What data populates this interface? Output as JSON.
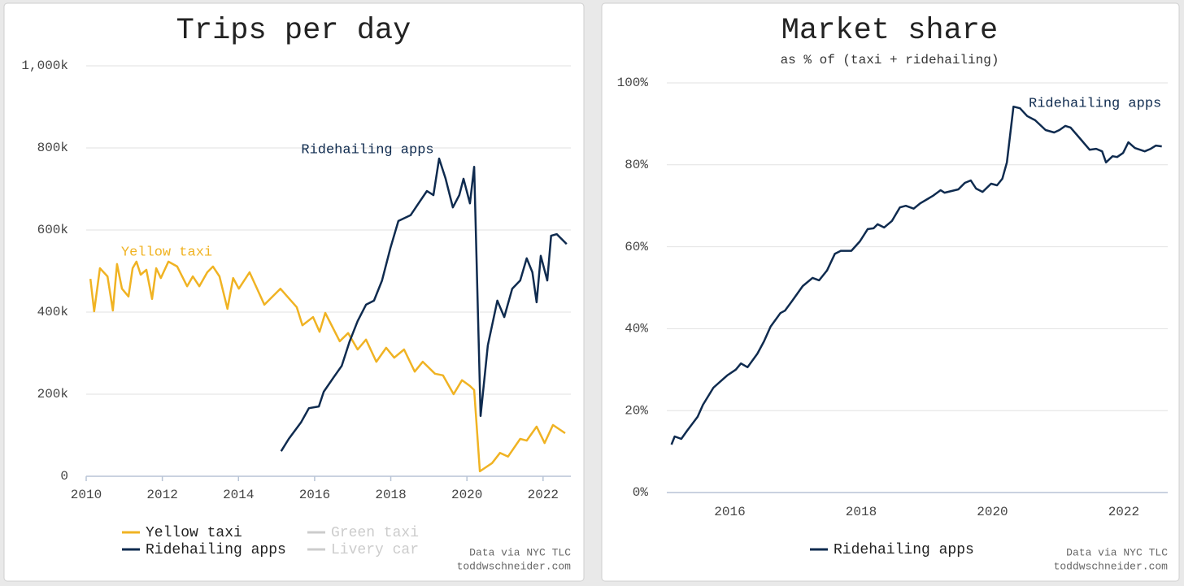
{
  "chart_data": [
    {
      "type": "line",
      "title": "Trips per day",
      "xlim": [
        2010,
        2022.73
      ],
      "xticks": [
        2010,
        2012,
        2014,
        2016,
        2018,
        2020,
        2022
      ],
      "ylim": [
        0,
        1000000
      ],
      "yticks": [
        0,
        {
          "value": 200000,
          "label": "200k"
        },
        {
          "value": 400000,
          "label": "400k"
        },
        {
          "value": 600000,
          "label": "600k"
        },
        {
          "value": 800000,
          "label": "800k"
        },
        {
          "value": 1000000,
          "label": "1,000k"
        }
      ],
      "grid": true,
      "series": [
        {
          "name": "Yellow taxi",
          "color": "#f0b323",
          "visible": true,
          "x": [
            2010.11,
            2010.21,
            2010.36,
            2010.56,
            2010.7,
            2010.81,
            2010.94,
            2011.11,
            2011.22,
            2011.32,
            2011.43,
            2011.58,
            2011.73,
            2011.84,
            2011.96,
            2012.16,
            2012.39,
            2012.65,
            2012.8,
            2012.97,
            2013.18,
            2013.33,
            2013.5,
            2013.71,
            2013.86,
            2014.01,
            2014.29,
            2014.68,
            2015.1,
            2015.53,
            2015.68,
            2015.96,
            2016.13,
            2016.28,
            2016.66,
            2016.88,
            2017.13,
            2017.35,
            2017.62,
            2017.88,
            2018.09,
            2018.35,
            2018.63,
            2018.84,
            2019.16,
            2019.37,
            2019.65,
            2019.87,
            2020.08,
            2020.19,
            2020.34,
            2020.66,
            2020.87,
            2021.08,
            2021.4,
            2021.57,
            2021.83,
            2022.04,
            2022.26,
            2022.58
          ],
          "values": [
            481000,
            402000,
            507000,
            487000,
            404000,
            517000,
            457000,
            438000,
            507000,
            523000,
            491000,
            503000,
            432000,
            507000,
            483000,
            523000,
            511000,
            463000,
            487000,
            463000,
            497000,
            511000,
            487000,
            408000,
            483000,
            457000,
            497000,
            418000,
            457000,
            412000,
            368000,
            388000,
            352000,
            398000,
            329000,
            349000,
            309000,
            333000,
            279000,
            313000,
            289000,
            309000,
            255000,
            279000,
            250000,
            246000,
            200000,
            234000,
            220000,
            210000,
            12000,
            32000,
            57000,
            48000,
            91000,
            87000,
            121000,
            81000,
            125000,
            105000
          ]
        },
        {
          "name": "Ridehailing apps",
          "color": "#0f2b4f",
          "visible": true,
          "x": [
            2015.12,
            2015.32,
            2015.64,
            2015.85,
            2016.11,
            2016.24,
            2016.49,
            2016.71,
            2016.92,
            2017.13,
            2017.35,
            2017.56,
            2017.77,
            2017.99,
            2018.2,
            2018.52,
            2018.73,
            2018.95,
            2019.12,
            2019.27,
            2019.44,
            2019.63,
            2019.8,
            2019.91,
            2020.08,
            2020.19,
            2020.36,
            2020.55,
            2020.8,
            2020.98,
            2021.19,
            2021.4,
            2021.57,
            2021.72,
            2021.83,
            2021.94,
            2022.11,
            2022.21,
            2022.36,
            2022.51,
            2022.62
          ],
          "values": [
            61000,
            91000,
            131000,
            166000,
            170000,
            206000,
            240000,
            269000,
            329000,
            378000,
            418000,
            428000,
            477000,
            556000,
            622000,
            636000,
            665000,
            695000,
            685000,
            774000,
            725000,
            655000,
            685000,
            725000,
            665000,
            754000,
            147000,
            319000,
            428000,
            388000,
            457000,
            477000,
            531000,
            497000,
            424000,
            537000,
            477000,
            586000,
            590000,
            576000,
            566000
          ]
        },
        {
          "name": "Green taxi",
          "color": "#cccccc",
          "visible": false,
          "x": [],
          "values": []
        },
        {
          "name": "Livery car",
          "color": "#cccccc",
          "visible": false,
          "x": [],
          "values": []
        }
      ],
      "annotations": [
        "Yellow taxi",
        "Ridehailing apps"
      ],
      "source": [
        "Data via NYC TLC",
        "toddwschneider.com"
      ]
    },
    {
      "type": "line",
      "title": "Market share",
      "subtitle": "as % of (taxi + ridehailing)",
      "xlim": [
        2015.04,
        2022.67
      ],
      "xticks": [
        2016,
        2018,
        2020,
        2022
      ],
      "ylim": [
        0,
        100
      ],
      "yticks": [
        {
          "value": 0,
          "label": "0%"
        },
        {
          "value": 20,
          "label": "20%"
        },
        {
          "value": 40,
          "label": "40%"
        },
        {
          "value": 60,
          "label": "60%"
        },
        {
          "value": 80,
          "label": "80%"
        },
        {
          "value": 100,
          "label": "100%"
        }
      ],
      "grid": true,
      "series": [
        {
          "name": "Ridehailing apps",
          "color": "#0f2b4f",
          "visible": true,
          "x": [
            2015.11,
            2015.16,
            2015.26,
            2015.35,
            2015.51,
            2015.59,
            2015.75,
            2015.96,
            2016.09,
            2016.17,
            2016.27,
            2016.42,
            2016.52,
            2016.62,
            2016.77,
            2016.84,
            2016.95,
            2017.11,
            2017.26,
            2017.36,
            2017.48,
            2017.6,
            2017.69,
            2017.85,
            2017.98,
            2018.1,
            2018.19,
            2018.25,
            2018.35,
            2018.47,
            2018.59,
            2018.68,
            2018.8,
            2018.9,
            2019.09,
            2019.21,
            2019.27,
            2019.48,
            2019.58,
            2019.67,
            2019.75,
            2019.85,
            2019.98,
            2020.07,
            2020.15,
            2020.22,
            2020.32,
            2020.42,
            2020.53,
            2020.65,
            2020.81,
            2020.94,
            2021.02,
            2021.11,
            2021.19,
            2021.33,
            2021.48,
            2021.58,
            2021.67,
            2021.73,
            2021.83,
            2021.9,
            2021.99,
            2022.07,
            2022.17,
            2022.32,
            2022.41,
            2022.49,
            2022.58
          ],
          "values": [
            11.7,
            13.7,
            13.1,
            15.1,
            18.5,
            21.4,
            25.6,
            28.6,
            30,
            31.5,
            30.6,
            33.9,
            36.9,
            40.5,
            43.8,
            44.4,
            46.8,
            50.4,
            52.4,
            51.8,
            54.2,
            58.3,
            59,
            59,
            61.3,
            64.3,
            64.5,
            65.5,
            64.7,
            66.3,
            69.6,
            70,
            69.3,
            70.6,
            72.4,
            73.8,
            73.2,
            74,
            75.6,
            76.2,
            74.2,
            73.4,
            75.4,
            75,
            76.6,
            80.6,
            94.2,
            93.8,
            91.9,
            90.9,
            88.5,
            87.9,
            88.5,
            89.5,
            89.1,
            86.5,
            83.7,
            83.9,
            83.3,
            80.6,
            82.1,
            81.9,
            82.9,
            85.5,
            84.1,
            83.3,
            83.9,
            84.7,
            84.5
          ]
        }
      ],
      "annotations": [
        "Ridehailing apps"
      ],
      "source": [
        "Data via NYC TLC",
        "toddwschneider.com"
      ]
    }
  ]
}
